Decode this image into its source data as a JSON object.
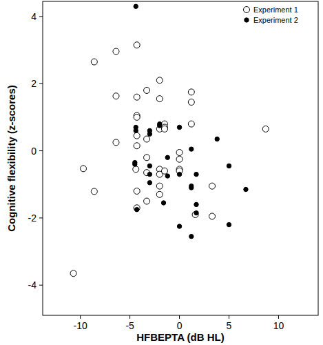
{
  "chart_data": {
    "type": "scatter",
    "x_label": "HFBEPTA (dB HL)",
    "y_label": "Cognitive flexibility (z-scores)",
    "xlim": [
      -13.8,
      14
    ],
    "ylim": [
      -4.9,
      4.45
    ],
    "xticks": [
      -10,
      -5,
      0,
      5,
      10
    ],
    "yticks": [
      4,
      2,
      0,
      -2,
      -4
    ],
    "legend": "top-right",
    "grid": false,
    "series": [
      {
        "name": "Experiment 1",
        "color": "#000000",
        "marker": "circle-open",
        "x": [
          -10.7,
          -9.7,
          -8.6,
          -8.6,
          -6.4,
          -6.4,
          -6.4,
          -4.3,
          -4.3,
          -4.3,
          -4.3,
          -4.3,
          -4.3,
          -4.3,
          -4.4,
          -4.3,
          -3.3,
          -3.3,
          -3.3,
          -3.3,
          -3.3,
          -2.0,
          -2.0,
          -2.0,
          -2.0,
          -2.0,
          -2.0,
          -2.0,
          -1.5,
          -1.5,
          -1.5,
          -1.5,
          0,
          0,
          0,
          0,
          1.2,
          1.2,
          1.2,
          1.6,
          3.3,
          3.3,
          8.7
        ],
        "y": [
          -3.65,
          -0.53,
          -1.21,
          2.65,
          2.96,
          1.63,
          0.25,
          3.15,
          1.6,
          1.05,
          1.0,
          0.45,
          0.15,
          -1.2,
          -0.55,
          -1.7,
          1.8,
          0.35,
          -0.2,
          -0.65,
          -1.5,
          2.1,
          1.55,
          0.65,
          -0.55,
          -0.7,
          -1.05,
          -1.3,
          0.8,
          0.7,
          0.65,
          -0.6,
          -0.05,
          -0.25,
          -0.55,
          -0.6,
          1.75,
          1.45,
          0.8,
          -1.9,
          -1.05,
          -1.95,
          0.65
        ]
      },
      {
        "name": "Experiment 2",
        "color": "#000000",
        "marker": "circle",
        "x": [
          -4.4,
          -4.4,
          -4.4,
          -4.5,
          -4.5,
          -4.3,
          -3.0,
          -3.0,
          -3.0,
          -3.0,
          -3.0,
          -2.0,
          -2.0,
          -1.2,
          -1.2,
          -1.6,
          0,
          0,
          0,
          1.2,
          1.2,
          1.2,
          1.2,
          1.7,
          1.7,
          1.7,
          3.8,
          5,
          5,
          6.7
        ],
        "y": [
          4.3,
          0.7,
          0.6,
          -0.35,
          -0.4,
          -1.75,
          0.6,
          0.5,
          -0.45,
          -0.95,
          -0.7,
          0.8,
          0.75,
          -0.2,
          -0.75,
          -1.55,
          0.7,
          -0.7,
          -2.25,
          0.05,
          -1.05,
          -1.1,
          -2.55,
          -0.7,
          -1.6,
          -1.85,
          0.35,
          -0.45,
          -2.2,
          -1.15
        ]
      }
    ]
  }
}
